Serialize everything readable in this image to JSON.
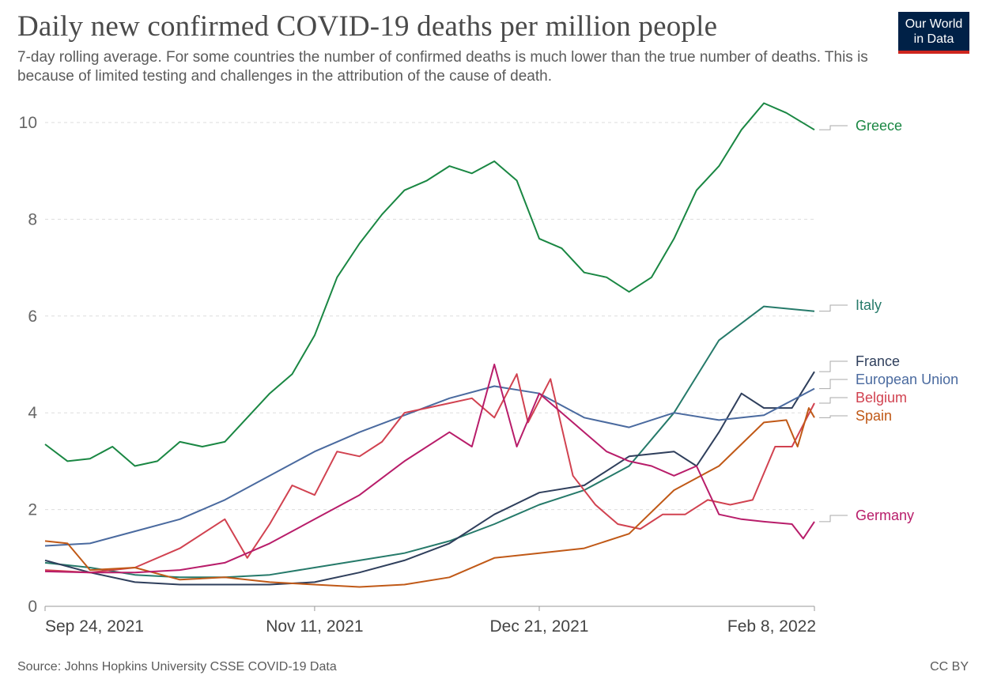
{
  "header": {
    "title": "Daily new confirmed COVID-19 deaths per million people",
    "subtitle": "7-day rolling average. For some countries the number of confirmed deaths is much lower than the true number of deaths. This is because of limited testing and challenges in the attribution of the cause of death.",
    "logo_line1": "Our World",
    "logo_line2": "in Data"
  },
  "footer": {
    "source": "Source: Johns Hopkins University CSSE COVID-19 Data",
    "license": "CC BY"
  },
  "chart_data": {
    "type": "line",
    "title": "Daily new confirmed COVID-19 deaths per million people",
    "subtitle": "7-day rolling average. For some countries the number of confirmed deaths is much lower than the true number of deaths. This is because of limited testing and challenges in the attribution of the cause of death.",
    "xlabel": "",
    "ylabel": "",
    "x_range": [
      "2021-09-24",
      "2022-02-08"
    ],
    "ylim": [
      0,
      10.4
    ],
    "y_ticks": [
      0,
      2,
      4,
      6,
      8,
      10
    ],
    "x_ticks": [
      "Sep 24, 2021",
      "Nov 11, 2021",
      "Dec 21, 2021",
      "Feb 8, 2022"
    ],
    "grid": "horizontal dashed",
    "legend": "line-end labels (right)",
    "series": [
      {
        "name": "Greece",
        "color": "#1a8743",
        "points": [
          [
            "2021-09-24",
            3.35
          ],
          [
            "2021-09-28",
            3.0
          ],
          [
            "2021-10-02",
            3.05
          ],
          [
            "2021-10-06",
            3.3
          ],
          [
            "2021-10-10",
            2.9
          ],
          [
            "2021-10-14",
            3.0
          ],
          [
            "2021-10-18",
            3.4
          ],
          [
            "2021-10-22",
            3.3
          ],
          [
            "2021-10-26",
            3.4
          ],
          [
            "2021-10-30",
            3.9
          ],
          [
            "2021-11-03",
            4.4
          ],
          [
            "2021-11-07",
            4.8
          ],
          [
            "2021-11-11",
            5.6
          ],
          [
            "2021-11-15",
            6.8
          ],
          [
            "2021-11-19",
            7.5
          ],
          [
            "2021-11-23",
            8.1
          ],
          [
            "2021-11-27",
            8.6
          ],
          [
            "2021-12-01",
            8.8
          ],
          [
            "2021-12-05",
            9.1
          ],
          [
            "2021-12-09",
            8.95
          ],
          [
            "2021-12-13",
            9.2
          ],
          [
            "2021-12-17",
            8.8
          ],
          [
            "2021-12-21",
            7.6
          ],
          [
            "2021-12-25",
            7.4
          ],
          [
            "2021-12-29",
            6.9
          ],
          [
            "2022-01-02",
            6.8
          ],
          [
            "2022-01-06",
            6.5
          ],
          [
            "2022-01-10",
            6.8
          ],
          [
            "2022-01-14",
            7.6
          ],
          [
            "2022-01-18",
            8.6
          ],
          [
            "2022-01-22",
            9.1
          ],
          [
            "2022-01-26",
            9.85
          ],
          [
            "2022-01-30",
            10.4
          ],
          [
            "2022-02-03",
            10.2
          ],
          [
            "2022-02-08",
            9.85
          ]
        ]
      },
      {
        "name": "Italy",
        "color": "#267a6a",
        "points": [
          [
            "2021-09-24",
            0.9
          ],
          [
            "2021-10-02",
            0.8
          ],
          [
            "2021-10-10",
            0.65
          ],
          [
            "2021-10-18",
            0.6
          ],
          [
            "2021-10-26",
            0.6
          ],
          [
            "2021-11-03",
            0.65
          ],
          [
            "2021-11-11",
            0.8
          ],
          [
            "2021-11-19",
            0.95
          ],
          [
            "2021-11-27",
            1.1
          ],
          [
            "2021-12-05",
            1.35
          ],
          [
            "2021-12-13",
            1.7
          ],
          [
            "2021-12-21",
            2.1
          ],
          [
            "2021-12-29",
            2.4
          ],
          [
            "2022-01-06",
            2.9
          ],
          [
            "2022-01-14",
            4.0
          ],
          [
            "2022-01-22",
            5.5
          ],
          [
            "2022-01-30",
            6.2
          ],
          [
            "2022-02-08",
            6.1
          ]
        ]
      },
      {
        "name": "France",
        "color": "#2f3f5c",
        "points": [
          [
            "2021-09-24",
            0.95
          ],
          [
            "2021-10-02",
            0.7
          ],
          [
            "2021-10-10",
            0.5
          ],
          [
            "2021-10-18",
            0.45
          ],
          [
            "2021-10-26",
            0.45
          ],
          [
            "2021-11-03",
            0.45
          ],
          [
            "2021-11-11",
            0.5
          ],
          [
            "2021-11-19",
            0.7
          ],
          [
            "2021-11-27",
            0.95
          ],
          [
            "2021-12-05",
            1.3
          ],
          [
            "2021-12-13",
            1.9
          ],
          [
            "2021-12-21",
            2.35
          ],
          [
            "2021-12-29",
            2.5
          ],
          [
            "2022-01-06",
            3.1
          ],
          [
            "2022-01-14",
            3.2
          ],
          [
            "2022-01-18",
            2.9
          ],
          [
            "2022-01-22",
            3.6
          ],
          [
            "2022-01-26",
            4.4
          ],
          [
            "2022-01-30",
            4.1
          ],
          [
            "2022-02-04",
            4.1
          ],
          [
            "2022-02-08",
            4.85
          ]
        ]
      },
      {
        "name": "European Union",
        "color": "#4a6a9f",
        "points": [
          [
            "2021-09-24",
            1.25
          ],
          [
            "2021-10-02",
            1.3
          ],
          [
            "2021-10-10",
            1.55
          ],
          [
            "2021-10-18",
            1.8
          ],
          [
            "2021-10-26",
            2.2
          ],
          [
            "2021-11-03",
            2.7
          ],
          [
            "2021-11-11",
            3.2
          ],
          [
            "2021-11-19",
            3.6
          ],
          [
            "2021-11-27",
            3.95
          ],
          [
            "2021-12-05",
            4.3
          ],
          [
            "2021-12-13",
            4.55
          ],
          [
            "2021-12-21",
            4.4
          ],
          [
            "2021-12-29",
            3.9
          ],
          [
            "2022-01-06",
            3.7
          ],
          [
            "2022-01-14",
            4.0
          ],
          [
            "2022-01-22",
            3.85
          ],
          [
            "2022-01-30",
            3.95
          ],
          [
            "2022-02-08",
            4.5
          ]
        ]
      },
      {
        "name": "Belgium",
        "color": "#d14250",
        "points": [
          [
            "2021-09-24",
            0.75
          ],
          [
            "2021-10-02",
            0.7
          ],
          [
            "2021-10-10",
            0.8
          ],
          [
            "2021-10-18",
            1.2
          ],
          [
            "2021-10-26",
            1.8
          ],
          [
            "2021-10-30",
            1.0
          ],
          [
            "2021-11-03",
            1.7
          ],
          [
            "2021-11-07",
            2.5
          ],
          [
            "2021-11-11",
            2.3
          ],
          [
            "2021-11-15",
            3.2
          ],
          [
            "2021-11-19",
            3.1
          ],
          [
            "2021-11-23",
            3.4
          ],
          [
            "2021-11-27",
            4.0
          ],
          [
            "2021-12-01",
            4.1
          ],
          [
            "2021-12-05",
            4.2
          ],
          [
            "2021-12-09",
            4.3
          ],
          [
            "2021-12-13",
            3.9
          ],
          [
            "2021-12-17",
            4.8
          ],
          [
            "2021-12-19",
            3.8
          ],
          [
            "2021-12-23",
            4.7
          ],
          [
            "2021-12-27",
            2.7
          ],
          [
            "2021-12-31",
            2.1
          ],
          [
            "2022-01-04",
            1.7
          ],
          [
            "2022-01-08",
            1.6
          ],
          [
            "2022-01-12",
            1.9
          ],
          [
            "2022-01-16",
            1.9
          ],
          [
            "2022-01-20",
            2.2
          ],
          [
            "2022-01-24",
            2.1
          ],
          [
            "2022-01-28",
            2.2
          ],
          [
            "2022-02-01",
            3.3
          ],
          [
            "2022-02-04",
            3.3
          ],
          [
            "2022-02-08",
            4.2
          ]
        ]
      },
      {
        "name": "Spain",
        "color": "#c05917",
        "points": [
          [
            "2021-09-24",
            1.35
          ],
          [
            "2021-09-28",
            1.3
          ],
          [
            "2021-10-02",
            0.75
          ],
          [
            "2021-10-10",
            0.8
          ],
          [
            "2021-10-18",
            0.55
          ],
          [
            "2021-10-26",
            0.6
          ],
          [
            "2021-11-03",
            0.5
          ],
          [
            "2021-11-11",
            0.45
          ],
          [
            "2021-11-19",
            0.4
          ],
          [
            "2021-11-27",
            0.45
          ],
          [
            "2021-12-05",
            0.6
          ],
          [
            "2021-12-13",
            1.0
          ],
          [
            "2021-12-21",
            1.1
          ],
          [
            "2021-12-29",
            1.2
          ],
          [
            "2022-01-06",
            1.5
          ],
          [
            "2022-01-14",
            2.4
          ],
          [
            "2022-01-22",
            2.9
          ],
          [
            "2022-01-30",
            3.8
          ],
          [
            "2022-02-03",
            3.85
          ],
          [
            "2022-02-05",
            3.3
          ],
          [
            "2022-02-07",
            4.1
          ],
          [
            "2022-02-08",
            3.9
          ]
        ]
      },
      {
        "name": "Germany",
        "color": "#b81d6a",
        "points": [
          [
            "2021-09-24",
            0.72
          ],
          [
            "2021-10-02",
            0.7
          ],
          [
            "2021-10-10",
            0.7
          ],
          [
            "2021-10-18",
            0.75
          ],
          [
            "2021-10-26",
            0.9
          ],
          [
            "2021-11-03",
            1.3
          ],
          [
            "2021-11-11",
            1.8
          ],
          [
            "2021-11-19",
            2.3
          ],
          [
            "2021-11-27",
            3.0
          ],
          [
            "2021-12-05",
            3.6
          ],
          [
            "2021-12-09",
            3.3
          ],
          [
            "2021-12-13",
            5.0
          ],
          [
            "2021-12-17",
            3.3
          ],
          [
            "2021-12-21",
            4.4
          ],
          [
            "2021-12-29",
            3.6
          ],
          [
            "2022-01-02",
            3.2
          ],
          [
            "2022-01-06",
            3.0
          ],
          [
            "2022-01-10",
            2.9
          ],
          [
            "2022-01-14",
            2.7
          ],
          [
            "2022-01-18",
            2.9
          ],
          [
            "2022-01-22",
            1.9
          ],
          [
            "2022-01-26",
            1.8
          ],
          [
            "2022-01-30",
            1.75
          ],
          [
            "2022-02-04",
            1.7
          ],
          [
            "2022-02-06",
            1.4
          ],
          [
            "2022-02-08",
            1.75
          ]
        ]
      }
    ]
  }
}
